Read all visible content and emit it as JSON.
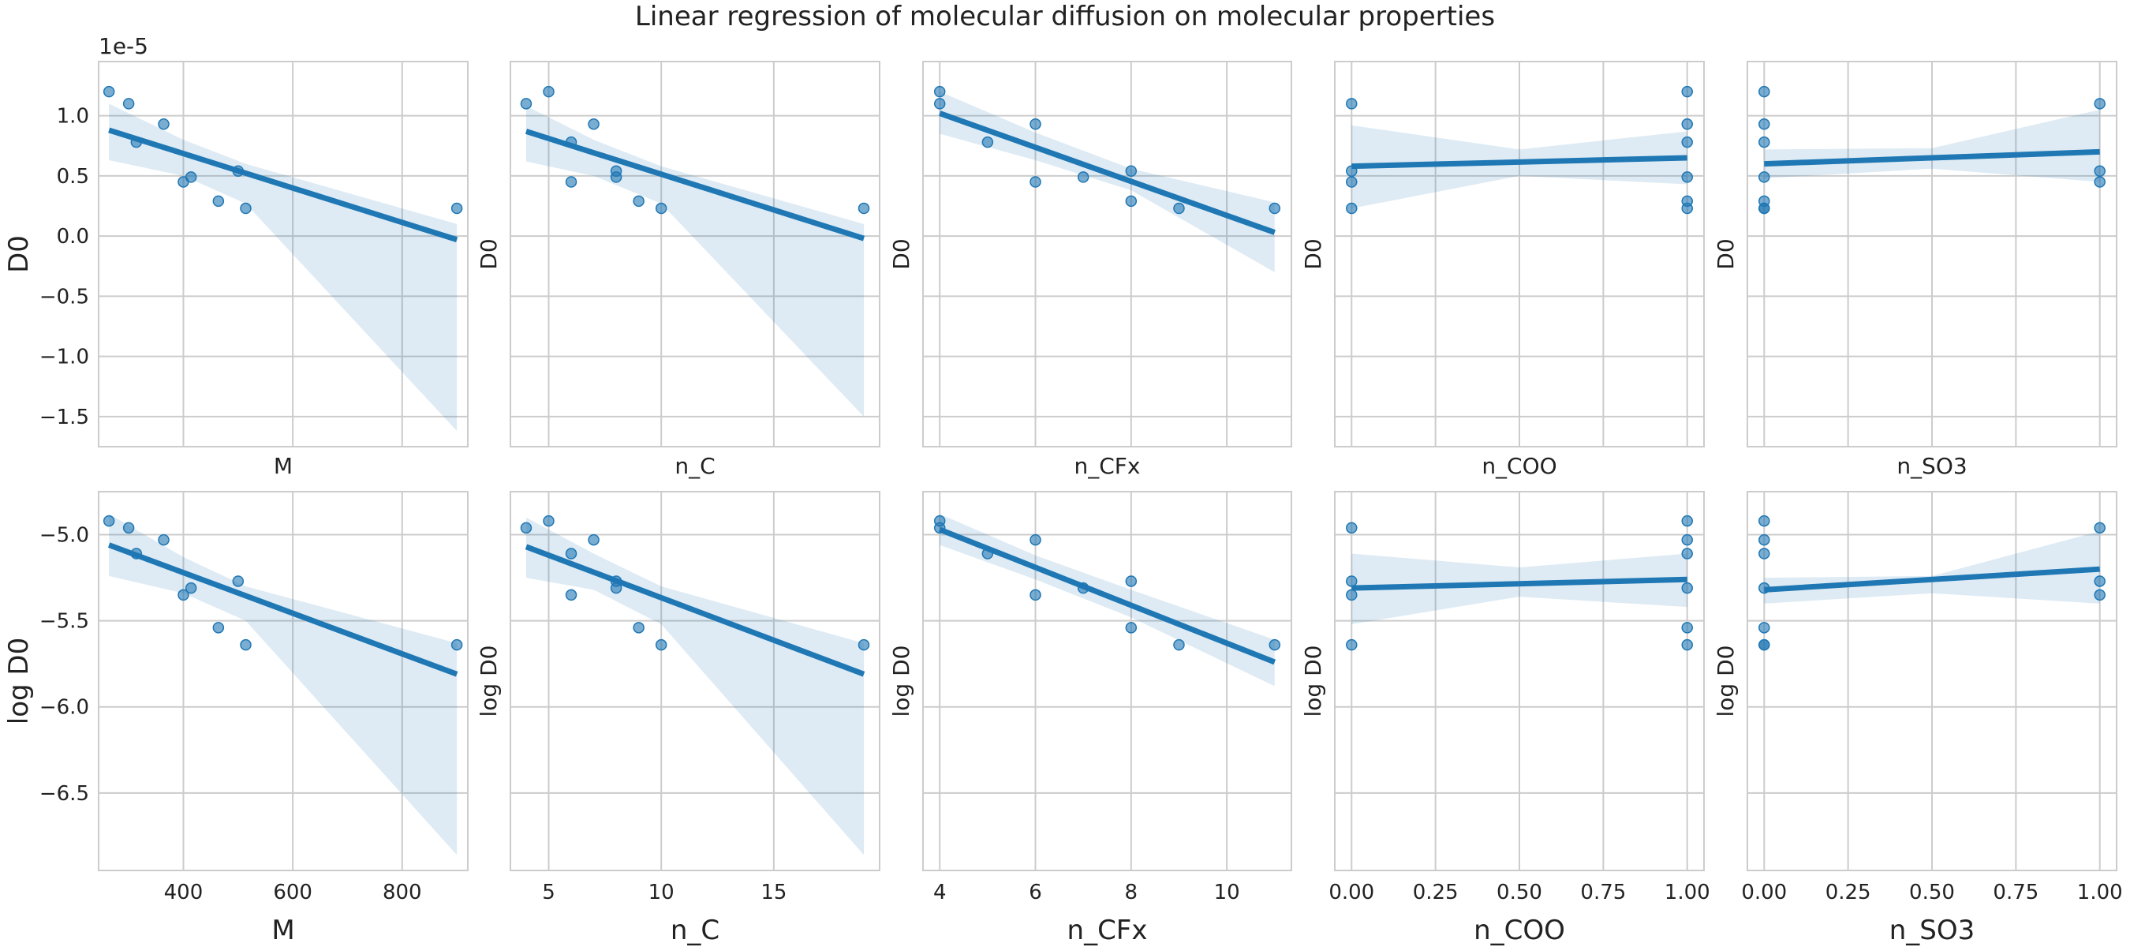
{
  "title": "Linear regression of molecular diffusion on molecular properties",
  "points": [
    {
      "M": 264,
      "n_C": 5,
      "n_CFx": 4,
      "n_COO": 1,
      "n_SO3": 0,
      "D0": 1.2e-05,
      "logD0": -4.92
    },
    {
      "M": 300,
      "n_C": 4,
      "n_CFx": 4,
      "n_COO": 0,
      "n_SO3": 1,
      "D0": 1.1e-05,
      "logD0": -4.96
    },
    {
      "M": 314,
      "n_C": 6,
      "n_CFx": 5,
      "n_COO": 1,
      "n_SO3": 0,
      "D0": 7.8e-06,
      "logD0": -5.11
    },
    {
      "M": 364,
      "n_C": 7,
      "n_CFx": 6,
      "n_COO": 1,
      "n_SO3": 0,
      "D0": 9.3e-06,
      "logD0": -5.03
    },
    {
      "M": 400,
      "n_C": 6,
      "n_CFx": 6,
      "n_COO": 0,
      "n_SO3": 1,
      "D0": 4.5e-06,
      "logD0": -5.35
    },
    {
      "M": 414,
      "n_C": 8,
      "n_CFx": 7,
      "n_COO": 1,
      "n_SO3": 0,
      "D0": 4.9e-06,
      "logD0": -5.31
    },
    {
      "M": 464,
      "n_C": 9,
      "n_CFx": 8,
      "n_COO": 1,
      "n_SO3": 0,
      "D0": 2.9e-06,
      "logD0": -5.54
    },
    {
      "M": 500,
      "n_C": 8,
      "n_CFx": 8,
      "n_COO": 0,
      "n_SO3": 1,
      "D0": 5.4e-06,
      "logD0": -5.27
    },
    {
      "M": 514,
      "n_C": 10,
      "n_CFx": 9,
      "n_COO": 1,
      "n_SO3": 0,
      "D0": 2.3e-06,
      "logD0": -5.64
    },
    {
      "M": 900,
      "n_C": 19,
      "n_CFx": 11,
      "n_COO": 0,
      "n_SO3": 0,
      "D0": 2.3e-06,
      "logD0": -5.64
    }
  ],
  "chart_data": [
    {
      "type": "scatter",
      "panel": "D0 vs M",
      "xlabel": "M",
      "ylabel": "D0",
      "x_key": "M",
      "y_key": "D0",
      "y_offset_label": "1e-5",
      "xlim": [
        245,
        920
      ],
      "ylim": [
        -1.75e-05,
        1.45e-05
      ],
      "xticks": [],
      "yticks": [
        -1.5e-05,
        -1e-05,
        -5e-06,
        0,
        5e-06,
        1e-05
      ],
      "ytick_labels": [
        "−1.5",
        "−1.0",
        "−0.5",
        "0.0",
        "0.5",
        "1.0"
      ],
      "fit": [
        [
          264,
          8.8e-06
        ],
        [
          900,
          -3e-07
        ]
      ],
      "ci_upper": [
        [
          264,
          1.1e-05
        ],
        [
          400,
          8e-06
        ],
        [
          514,
          6e-06
        ],
        [
          900,
          1e-06
        ]
      ],
      "ci_lower": [
        [
          264,
          6.3e-06
        ],
        [
          400,
          5e-06
        ],
        [
          514,
          2.7e-06
        ],
        [
          900,
          -1.62e-05
        ]
      ]
    },
    {
      "type": "scatter",
      "panel": "D0 vs n_C",
      "xlabel": "n_C",
      "ylabel": "D0",
      "x_key": "n_C",
      "y_key": "D0",
      "xlim": [
        3.3,
        19.7
      ],
      "ylim": [
        -1.75e-05,
        1.45e-05
      ],
      "xticks": [],
      "yticks": [
        -1.5e-05,
        -1e-05,
        -5e-06,
        0,
        5e-06,
        1e-05
      ],
      "ytick_labels": [],
      "fit": [
        [
          4,
          8.7e-06
        ],
        [
          19,
          -2e-07
        ]
      ],
      "ci_upper": [
        [
          4,
          1.08e-05
        ],
        [
          7,
          8e-06
        ],
        [
          10,
          5.8e-06
        ],
        [
          19,
          1e-06
        ]
      ],
      "ci_lower": [
        [
          4,
          6.2e-06
        ],
        [
          7,
          5e-06
        ],
        [
          10,
          2.7e-06
        ],
        [
          19,
          -1.5e-05
        ]
      ]
    },
    {
      "type": "scatter",
      "panel": "D0 vs n_CFx",
      "xlabel": "n_CFx",
      "ylabel": "D0",
      "x_key": "n_CFx",
      "y_key": "D0",
      "xlim": [
        3.65,
        11.35
      ],
      "ylim": [
        -1.75e-05,
        1.45e-05
      ],
      "xticks": [],
      "yticks": [
        -1.5e-05,
        -1e-05,
        -5e-06,
        0,
        5e-06,
        1e-05
      ],
      "ytick_labels": [],
      "fit": [
        [
          4,
          1.02e-05
        ],
        [
          11,
          3e-07
        ]
      ],
      "ci_upper": [
        [
          4,
          1.2e-05
        ],
        [
          6,
          8.6e-06
        ],
        [
          8,
          5.6e-06
        ],
        [
          11,
          2.8e-06
        ]
      ],
      "ci_lower": [
        [
          4,
          8.5e-06
        ],
        [
          6,
          6.3e-06
        ],
        [
          8,
          3.8e-06
        ],
        [
          11,
          -3e-06
        ]
      ]
    },
    {
      "type": "scatter",
      "panel": "D0 vs n_COO",
      "xlabel": "n_COO",
      "ylabel": "D0",
      "x_key": "n_COO",
      "y_key": "D0",
      "xlim": [
        -0.05,
        1.05
      ],
      "ylim": [
        -1.75e-05,
        1.45e-05
      ],
      "xticks": [],
      "yticks": [
        -1.5e-05,
        -1e-05,
        -5e-06,
        0,
        5e-06,
        1e-05
      ],
      "ytick_labels": [],
      "fit": [
        [
          0,
          5.8e-06
        ],
        [
          1,
          6.5e-06
        ]
      ],
      "ci_upper": [
        [
          0,
          9.2e-06
        ],
        [
          0.5,
          7.2e-06
        ],
        [
          1,
          8.7e-06
        ]
      ],
      "ci_lower": [
        [
          0,
          2.3e-06
        ],
        [
          0.5,
          5e-06
        ],
        [
          1,
          4.3e-06
        ]
      ]
    },
    {
      "type": "scatter",
      "panel": "D0 vs n_SO3",
      "xlabel": "n_SO3",
      "ylabel": "D0",
      "x_key": "n_SO3",
      "y_key": "D0",
      "xlim": [
        -0.05,
        1.05
      ],
      "ylim": [
        -1.75e-05,
        1.45e-05
      ],
      "xticks": [],
      "yticks": [
        -1.5e-05,
        -1e-05,
        -5e-06,
        0,
        5e-06,
        1e-05
      ],
      "ytick_labels": [],
      "fit": [
        [
          0,
          6e-06
        ],
        [
          1,
          7e-06
        ]
      ],
      "ci_upper": [
        [
          0,
          7.2e-06
        ],
        [
          0.5,
          7.3e-06
        ],
        [
          1,
          1.05e-05
        ]
      ],
      "ci_lower": [
        [
          0,
          4.8e-06
        ],
        [
          0.5,
          5.6e-06
        ],
        [
          1,
          4.5e-06
        ]
      ]
    },
    {
      "type": "scatter",
      "panel": "log D0 vs M",
      "xlabel": "M",
      "ylabel": "log D0",
      "x_key": "M",
      "y_key": "logD0",
      "xlim": [
        245,
        920
      ],
      "ylim": [
        -6.95,
        -4.75
      ],
      "xticks": [
        400,
        600,
        800
      ],
      "xtick_labels": [
        "400",
        "600",
        "800"
      ],
      "yticks": [
        -6.5,
        -6.0,
        -5.5,
        -5.0
      ],
      "ytick_labels": [
        "−6.5",
        "−6.0",
        "−5.5",
        "−5.0"
      ],
      "fit": [
        [
          264,
          -5.06
        ],
        [
          900,
          -5.81
        ]
      ],
      "ci_upper": [
        [
          264,
          -4.88
        ],
        [
          400,
          -5.13
        ],
        [
          514,
          -5.3
        ],
        [
          900,
          -5.63
        ]
      ],
      "ci_lower": [
        [
          264,
          -5.24
        ],
        [
          400,
          -5.34
        ],
        [
          514,
          -5.5
        ],
        [
          900,
          -6.86
        ]
      ]
    },
    {
      "type": "scatter",
      "panel": "log D0 vs n_C",
      "xlabel": "n_C",
      "ylabel": "log D0",
      "x_key": "n_C",
      "y_key": "logD0",
      "xlim": [
        3.3,
        19.7
      ],
      "ylim": [
        -6.95,
        -4.75
      ],
      "xticks": [
        5,
        10,
        15
      ],
      "xtick_labels": [
        "5",
        "10",
        "15"
      ],
      "yticks": [
        -6.5,
        -6.0,
        -5.5,
        -5.0
      ],
      "ytick_labels": [],
      "fit": [
        [
          4,
          -5.07
        ],
        [
          19,
          -5.81
        ]
      ],
      "ci_upper": [
        [
          4,
          -4.9
        ],
        [
          7,
          -5.11
        ],
        [
          10,
          -5.3
        ],
        [
          19,
          -5.63
        ]
      ],
      "ci_lower": [
        [
          4,
          -5.25
        ],
        [
          7,
          -5.32
        ],
        [
          10,
          -5.52
        ],
        [
          19,
          -6.86
        ]
      ]
    },
    {
      "type": "scatter",
      "panel": "log D0 vs n_CFx",
      "xlabel": "n_CFx",
      "ylabel": "log D0",
      "x_key": "n_CFx",
      "y_key": "logD0",
      "xlim": [
        3.65,
        11.35
      ],
      "ylim": [
        -6.95,
        -4.75
      ],
      "xticks": [
        4,
        6,
        8,
        10
      ],
      "xtick_labels": [
        "4",
        "6",
        "8",
        "10"
      ],
      "yticks": [
        -6.5,
        -6.0,
        -5.5,
        -5.0
      ],
      "ytick_labels": [],
      "fit": [
        [
          4,
          -4.97
        ],
        [
          11,
          -5.74
        ]
      ],
      "ci_upper": [
        [
          4,
          -4.88
        ],
        [
          6,
          -5.12
        ],
        [
          8,
          -5.32
        ],
        [
          11,
          -5.61
        ]
      ],
      "ci_lower": [
        [
          4,
          -5.06
        ],
        [
          6,
          -5.26
        ],
        [
          8,
          -5.48
        ],
        [
          11,
          -5.88
        ]
      ]
    },
    {
      "type": "scatter",
      "panel": "log D0 vs n_COO",
      "xlabel": "n_COO",
      "ylabel": "log D0",
      "x_key": "n_COO",
      "y_key": "logD0",
      "xlim": [
        -0.05,
        1.05
      ],
      "ylim": [
        -6.95,
        -4.75
      ],
      "xticks": [
        0,
        0.25,
        0.5,
        0.75,
        1.0
      ],
      "xtick_labels": [
        "0.00",
        "0.25",
        "0.50",
        "0.75",
        "1.00"
      ],
      "yticks": [
        -6.5,
        -6.0,
        -5.5,
        -5.0
      ],
      "ytick_labels": [],
      "fit": [
        [
          0,
          -5.31
        ],
        [
          1,
          -5.26
        ]
      ],
      "ci_upper": [
        [
          0,
          -5.11
        ],
        [
          0.5,
          -5.19
        ],
        [
          1,
          -5.11
        ]
      ],
      "ci_lower": [
        [
          0,
          -5.52
        ],
        [
          0.5,
          -5.36
        ],
        [
          1,
          -5.42
        ]
      ]
    },
    {
      "type": "scatter",
      "panel": "log D0 vs n_SO3",
      "xlabel": "n_SO3",
      "ylabel": "log D0",
      "x_key": "n_SO3",
      "y_key": "logD0",
      "xlim": [
        -0.05,
        1.05
      ],
      "ylim": [
        -6.95,
        -4.75
      ],
      "xticks": [
        0,
        0.25,
        0.5,
        0.75,
        1.0
      ],
      "xtick_labels": [
        "0.00",
        "0.25",
        "0.50",
        "0.75",
        "1.00"
      ],
      "yticks": [
        -6.5,
        -6.0,
        -5.5,
        -5.0
      ],
      "ytick_labels": [],
      "fit": [
        [
          0,
          -5.32
        ],
        [
          1,
          -5.2
        ]
      ],
      "ci_upper": [
        [
          0,
          -5.25
        ],
        [
          0.5,
          -5.24
        ],
        [
          1,
          -4.98
        ]
      ],
      "ci_lower": [
        [
          0,
          -5.4
        ],
        [
          0.5,
          -5.34
        ],
        [
          1,
          -5.4
        ]
      ]
    }
  ]
}
